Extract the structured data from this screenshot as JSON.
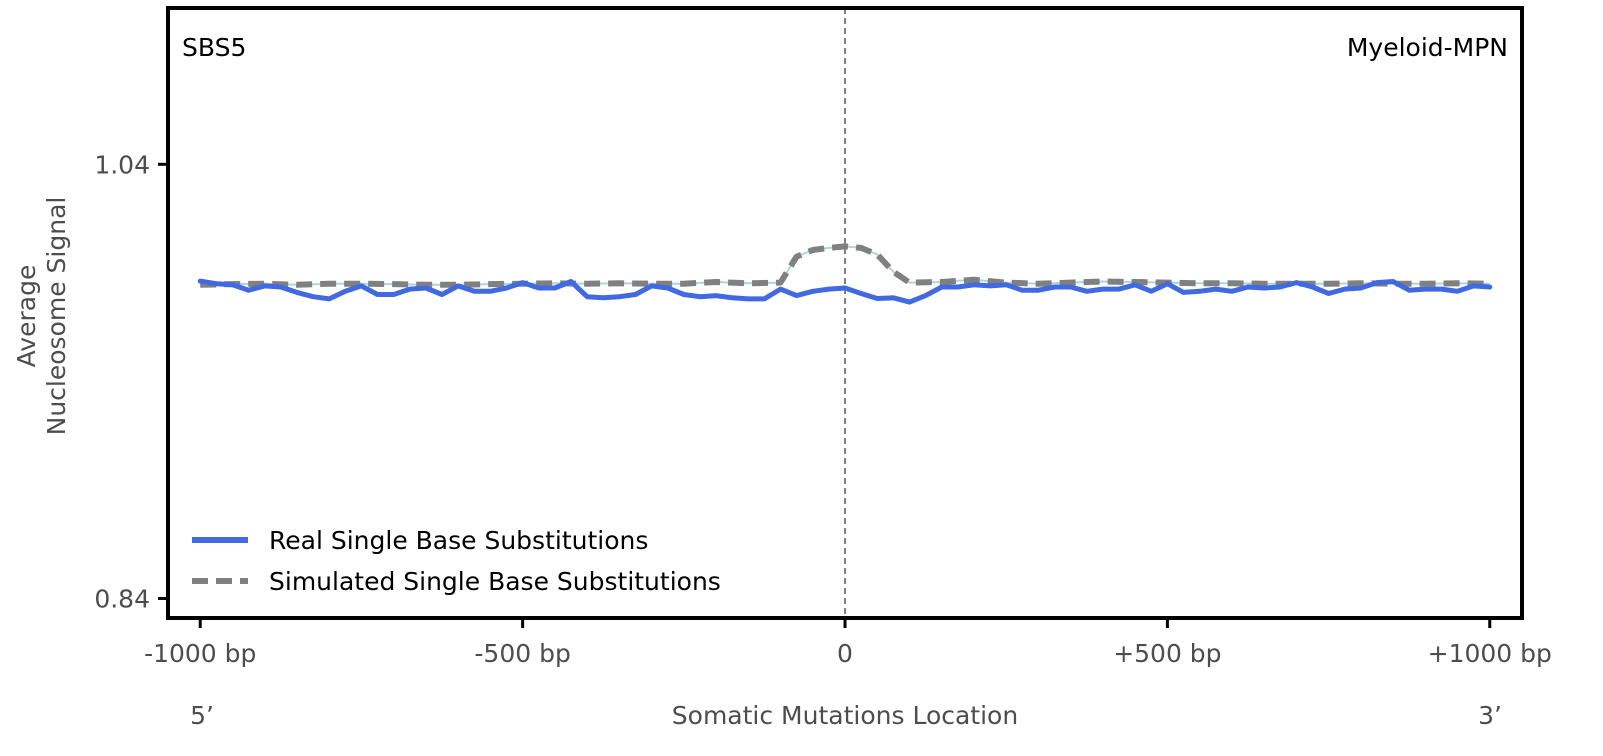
{
  "chart_data": {
    "type": "line",
    "title": "",
    "corner_left": "SBS5",
    "corner_right": "Myeloid-MPN",
    "xlabel": "Somatic Mutations Location",
    "ylabel_line1": "Average",
    "ylabel_line2": "Nucleosome Signal",
    "end_left": "5’",
    "end_right": "3’",
    "xlim": [
      -1050,
      1050
    ],
    "ylim": [
      0.831,
      1.112
    ],
    "x_ticks": [
      {
        "value": -1000,
        "label": "-1000 bp"
      },
      {
        "value": -500,
        "label": "-500 bp"
      },
      {
        "value": 0,
        "label": "0"
      },
      {
        "value": 500,
        "label": "+500 bp"
      },
      {
        "value": 1000,
        "label": "+1000 bp"
      }
    ],
    "y_ticks": [
      {
        "value": 1.04,
        "label": "1.04"
      },
      {
        "value": 0.84,
        "label": "0.84"
      }
    ],
    "grid": false,
    "center_line": 0,
    "legend_position": "lower-left",
    "series": [
      {
        "name": "Real Single Base Substitutions",
        "color": "#4169e1",
        "style": "solid",
        "x": [
          -1000,
          -975,
          -950,
          -925,
          -900,
          -875,
          -850,
          -825,
          -800,
          -775,
          -750,
          -725,
          -700,
          -675,
          -650,
          -625,
          -600,
          -575,
          -550,
          -525,
          -500,
          -475,
          -450,
          -425,
          -400,
          -375,
          -350,
          -325,
          -300,
          -275,
          -250,
          -225,
          -200,
          -175,
          -150,
          -125,
          -100,
          -75,
          -50,
          -25,
          0,
          25,
          50,
          75,
          100,
          125,
          150,
          175,
          200,
          225,
          250,
          275,
          300,
          325,
          350,
          375,
          400,
          425,
          450,
          475,
          500,
          525,
          550,
          575,
          600,
          625,
          650,
          675,
          700,
          725,
          750,
          775,
          800,
          825,
          850,
          875,
          900,
          925,
          950,
          975,
          1000
        ],
        "y": [
          0.9862,
          0.985,
          0.9845,
          0.982,
          0.984,
          0.9835,
          0.981,
          0.979,
          0.978,
          0.9815,
          0.984,
          0.98,
          0.98,
          0.9825,
          0.983,
          0.98,
          0.984,
          0.9815,
          0.9815,
          0.983,
          0.9855,
          0.983,
          0.983,
          0.986,
          0.979,
          0.9785,
          0.979,
          0.98,
          0.984,
          0.983,
          0.98,
          0.979,
          0.9795,
          0.9785,
          0.978,
          0.978,
          0.9825,
          0.9795,
          0.9815,
          0.9825,
          0.983,
          0.9805,
          0.9782,
          0.9785,
          0.9765,
          0.9795,
          0.9835,
          0.9835,
          0.9845,
          0.984,
          0.9845,
          0.982,
          0.982,
          0.9835,
          0.9835,
          0.9815,
          0.9825,
          0.9825,
          0.9845,
          0.9815,
          0.985,
          0.981,
          0.9815,
          0.9825,
          0.9815,
          0.9835,
          0.983,
          0.9835,
          0.9855,
          0.9835,
          0.9805,
          0.9825,
          0.983,
          0.9855,
          0.986,
          0.982,
          0.9825,
          0.9825,
          0.9815,
          0.984,
          0.9835
        ]
      },
      {
        "name": "Simulated Single Base Substitutions",
        "color": "#808080",
        "style": "dashed",
        "x": [
          -1000,
          -950,
          -900,
          -850,
          -800,
          -750,
          -700,
          -650,
          -600,
          -550,
          -500,
          -450,
          -400,
          -350,
          -300,
          -250,
          -200,
          -150,
          -100,
          -75,
          -50,
          -25,
          0,
          25,
          50,
          75,
          100,
          150,
          200,
          250,
          300,
          350,
          400,
          450,
          500,
          550,
          600,
          650,
          700,
          750,
          800,
          850,
          900,
          950,
          1000
        ],
        "y": [
          0.9845,
          0.9848,
          0.985,
          0.9845,
          0.985,
          0.985,
          0.9848,
          0.9845,
          0.9845,
          0.9848,
          0.985,
          0.9852,
          0.985,
          0.9852,
          0.985,
          0.985,
          0.9858,
          0.9852,
          0.9855,
          0.9975,
          1.0005,
          1.0015,
          1.0022,
          1.0015,
          0.9985,
          0.9905,
          0.9855,
          0.9858,
          0.9868,
          0.9855,
          0.985,
          0.9855,
          0.986,
          0.9858,
          0.9855,
          0.9852,
          0.9852,
          0.985,
          0.985,
          0.985,
          0.9852,
          0.985,
          0.985,
          0.9852,
          0.985
        ]
      }
    ]
  }
}
